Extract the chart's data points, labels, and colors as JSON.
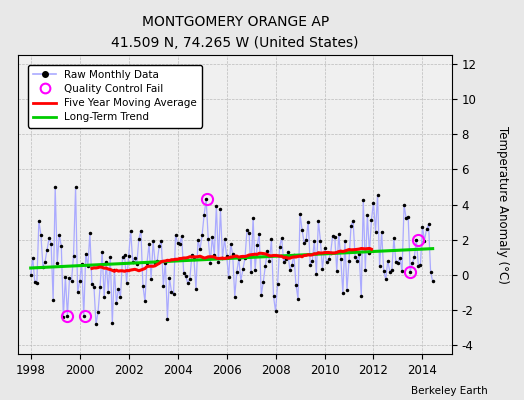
{
  "title": "MONTGOMERY ORANGE AP",
  "subtitle": "41.509 N, 74.265 W (United States)",
  "credit": "Berkeley Earth",
  "ylabel": "Temperature Anomaly (°C)",
  "xlim": [
    1997.5,
    2015.2
  ],
  "ylim": [
    -4.5,
    12.5
  ],
  "yticks": [
    -4,
    -2,
    0,
    2,
    4,
    6,
    8,
    10,
    12
  ],
  "xticks": [
    1998,
    2000,
    2002,
    2004,
    2006,
    2008,
    2010,
    2012,
    2014
  ],
  "raw_line_color": "#aaaaff",
  "raw_dot_color": "#000000",
  "moving_avg_color": "#ff0000",
  "trend_color": "#00cc00",
  "qc_fail_color": "#ff00ff",
  "background_color": "#e8e8e8",
  "plot_bg_color": "#f0f0f0",
  "seed": 12345
}
